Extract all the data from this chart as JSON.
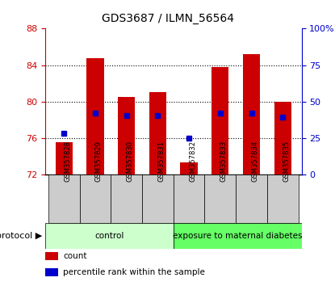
{
  "title": "GDS3687 / ILMN_56564",
  "samples": [
    "GSM357828",
    "GSM357829",
    "GSM357830",
    "GSM357831",
    "GSM357832",
    "GSM357833",
    "GSM357834",
    "GSM357835"
  ],
  "bar_bottoms": [
    72,
    72,
    72,
    72,
    72,
    72,
    72,
    72
  ],
  "bar_tops": [
    75.5,
    84.8,
    80.5,
    81.0,
    73.3,
    83.8,
    85.2,
    80.0
  ],
  "percentile_values": [
    76.5,
    78.7,
    78.5,
    78.5,
    76.0,
    78.7,
    78.7,
    78.3
  ],
  "ylim": [
    72,
    88
  ],
  "yticks": [
    72,
    76,
    80,
    84,
    88
  ],
  "y2lim": [
    0,
    100
  ],
  "y2ticks": [
    0,
    25,
    50,
    75,
    100
  ],
  "bar_color": "#cc0000",
  "percentile_color": "#0000cc",
  "left_axis_color": "#cc0000",
  "right_axis_color": "#0000cc",
  "grid_color": "#000000",
  "protocol_groups": [
    {
      "label": "control",
      "start": 0,
      "end": 4,
      "color": "#ccffcc"
    },
    {
      "label": "exposure to maternal diabetes",
      "start": 4,
      "end": 8,
      "color": "#66ff66"
    }
  ],
  "legend_items": [
    {
      "label": "count",
      "color": "#cc0000"
    },
    {
      "label": "percentile rank within the sample",
      "color": "#0000cc"
    }
  ],
  "bar_width": 0.55,
  "xtick_bg": "#cccccc"
}
